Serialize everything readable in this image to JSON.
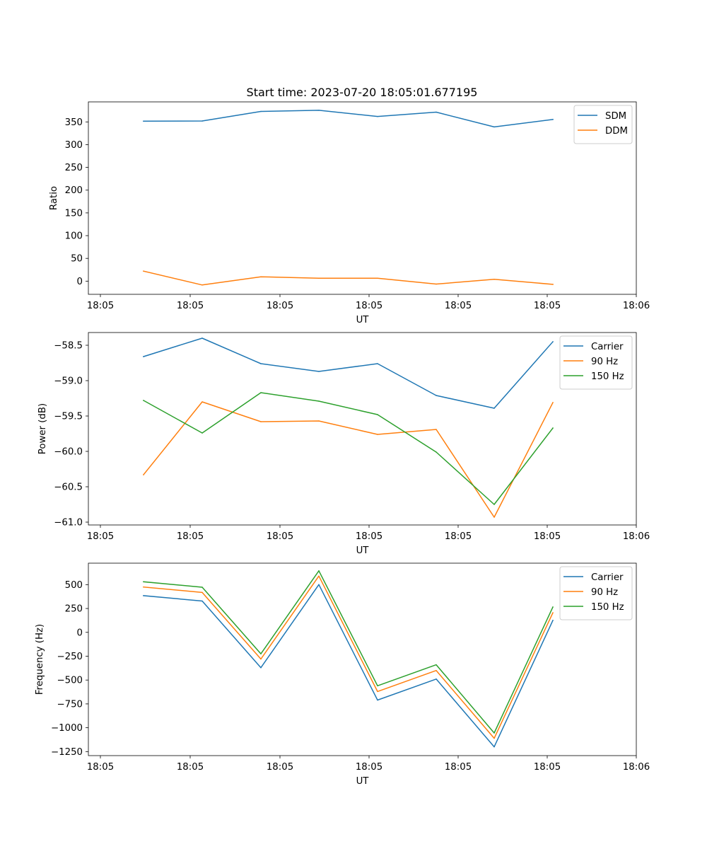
{
  "title": "Start time: 2023-07-20 18:05:01.677195",
  "colors": {
    "blue": "#1f77b4",
    "orange": "#ff7f0e",
    "green": "#2ca02c"
  },
  "chart_data": [
    {
      "type": "line",
      "title": "Start time: 2023-07-20 18:05:01.677195",
      "xlabel": "UT",
      "ylabel": "Ratio",
      "x_tick_labels": [
        "18:05",
        "18:05",
        "18:05",
        "18:05",
        "18:05",
        "18:05",
        "18:06"
      ],
      "yticks": [
        0,
        50,
        100,
        150,
        200,
        250,
        300,
        350
      ],
      "ylim": [
        -29,
        394
      ],
      "legend_position": "top-right",
      "series": [
        {
          "name": "SDM",
          "color": "#1f77b4",
          "values": [
            351.5,
            352,
            373,
            375.5,
            362,
            371.5,
            339,
            355.5
          ]
        },
        {
          "name": "DDM",
          "color": "#ff7f0e",
          "values": [
            22,
            -8.5,
            9.5,
            6.5,
            6.5,
            -6.5,
            4,
            -7
          ]
        }
      ]
    },
    {
      "type": "line",
      "title": "",
      "xlabel": "UT",
      "ylabel": "Power (dB)",
      "x_tick_labels": [
        "18:05",
        "18:05",
        "18:05",
        "18:05",
        "18:05",
        "18:05",
        "18:06"
      ],
      "yticks": [
        -61.0,
        -60.5,
        -60.0,
        -59.5,
        -59.0,
        -58.5
      ],
      "ytick_labels": [
        "−61.0",
        "−60.5",
        "−60.0",
        "−59.5",
        "−59.0",
        "−58.5"
      ],
      "ylim": [
        -61.04,
        -58.32
      ],
      "legend_position": "top-right",
      "series": [
        {
          "name": "Carrier",
          "color": "#1f77b4",
          "values": [
            -58.66,
            -58.4,
            -58.76,
            -58.87,
            -58.76,
            -59.21,
            -59.39,
            -58.45
          ]
        },
        {
          "name": "90 Hz",
          "color": "#ff7f0e",
          "values": [
            -60.33,
            -59.3,
            -59.58,
            -59.57,
            -59.76,
            -59.69,
            -60.93,
            -59.31
          ]
        },
        {
          "name": "150 Hz",
          "color": "#2ca02c",
          "values": [
            -59.28,
            -59.74,
            -59.17,
            -59.29,
            -59.48,
            -60.01,
            -60.75,
            -59.67
          ]
        }
      ]
    },
    {
      "type": "line",
      "title": "",
      "xlabel": "UT",
      "ylabel": "Frequency (Hz)",
      "x_tick_labels": [
        "18:05",
        "18:05",
        "18:05",
        "18:05",
        "18:05",
        "18:05",
        "18:06"
      ],
      "yticks": [
        -1250,
        -1000,
        -750,
        -500,
        -250,
        0,
        250,
        500
      ],
      "ytick_labels": [
        "−1250",
        "−1000",
        "−750",
        "−500",
        "−250",
        "0",
        "250",
        "500"
      ],
      "ylim": [
        -1292,
        725
      ],
      "legend_position": "top-right",
      "series": [
        {
          "name": "Carrier",
          "color": "#1f77b4",
          "values": [
            385,
            328,
            -370,
            500,
            -710,
            -490,
            -1200,
            125
          ]
        },
        {
          "name": "90 Hz",
          "color": "#ff7f0e",
          "values": [
            475,
            418,
            -280,
            590,
            -620,
            -400,
            -1110,
            205
          ]
        },
        {
          "name": "150 Hz",
          "color": "#2ca02c",
          "values": [
            530,
            473,
            -225,
            645,
            -560,
            -340,
            -1055,
            265
          ]
        }
      ]
    }
  ]
}
